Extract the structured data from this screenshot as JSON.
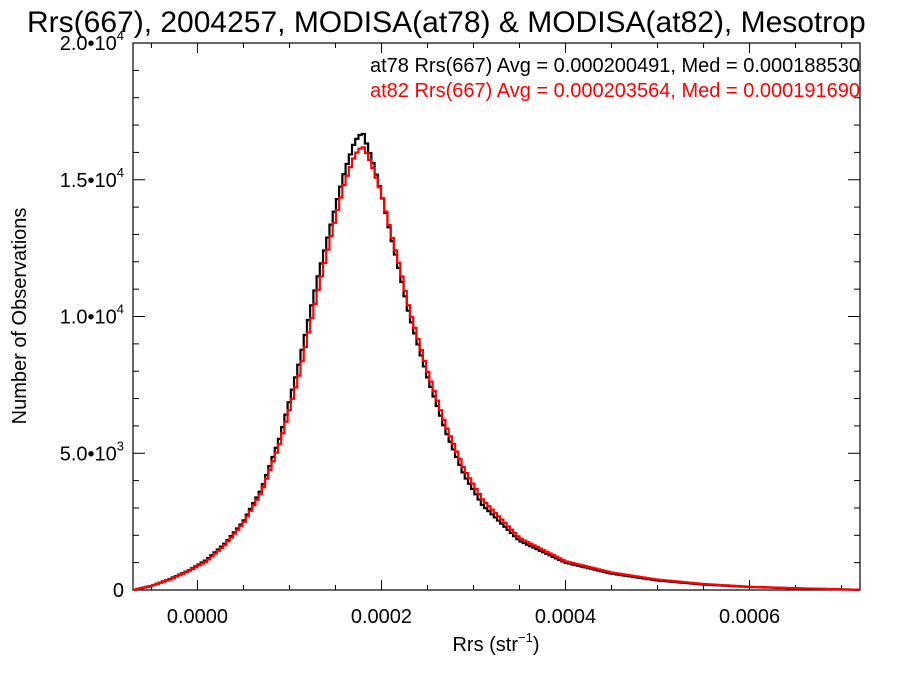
{
  "chart_data": {
    "type": "line",
    "title": "Rrs(667), 2004257, MODISA(at78) & MODISA(at82), Mesotrop",
    "xlabel": "Rrs (str",
    "xlabel_sup": "−1",
    "xlabel_end": ")",
    "ylabel": "Number of Observations",
    "xlim": [
      -7e-05,
      0.00072
    ],
    "ylim": [
      0,
      20000
    ],
    "x_ticks": [
      0.0,
      0.0002,
      0.0004,
      0.0006
    ],
    "x_tick_labels": [
      "0.0000",
      "0.0002",
      "0.0004",
      "0.0006"
    ],
    "y_ticks": [
      0,
      5000,
      10000,
      15000,
      20000
    ],
    "y_tick_labels": [
      {
        "base": "0",
        "exp": ""
      },
      {
        "base": "5.0•10",
        "exp": "3"
      },
      {
        "base": "1.0•10",
        "exp": "4"
      },
      {
        "base": "1.5•10",
        "exp": "4"
      },
      {
        "base": "2.0•10",
        "exp": "4"
      }
    ],
    "grid": false,
    "series": [
      {
        "name": "at78",
        "color": "#000000",
        "annotation": "at78 Rrs(667) Avg = 0.000200491, Med = 0.000188530",
        "x": [
          -7e-05,
          -5e-05,
          -3e-05,
          -1e-05,
          1e-05,
          3e-05,
          5e-05,
          7e-05,
          9e-05,
          0.00011,
          0.00013,
          0.00015,
          0.00016,
          0.00017,
          0.000175,
          0.00018,
          0.000185,
          0.00019,
          0.0002,
          0.00021,
          0.00022,
          0.00023,
          0.00025,
          0.00027,
          0.00029,
          0.00031,
          0.00035,
          0.0004,
          0.00045,
          0.0005,
          0.00055,
          0.0006,
          0.00065,
          0.0007,
          0.00072
        ],
        "y": [
          0,
          150,
          400,
          700,
          1100,
          1700,
          2500,
          3700,
          5600,
          8200,
          11300,
          14000,
          15300,
          16300,
          16600,
          16700,
          16200,
          15700,
          14500,
          13000,
          11600,
          10100,
          7800,
          5800,
          4200,
          3100,
          1800,
          1000,
          600,
          350,
          200,
          110,
          60,
          20,
          10
        ]
      },
      {
        "name": "at82",
        "color": "#ff0000",
        "annotation": "at82 Rrs(667) Avg = 0.000203564, Med = 0.000191690",
        "x": [
          -7e-05,
          -5e-05,
          -3e-05,
          -1e-05,
          1e-05,
          3e-05,
          5e-05,
          7e-05,
          9e-05,
          0.00011,
          0.00013,
          0.00015,
          0.00016,
          0.00017,
          0.000175,
          0.00018,
          0.000185,
          0.00019,
          0.0002,
          0.00021,
          0.00022,
          0.00023,
          0.00025,
          0.00027,
          0.00029,
          0.00031,
          0.00035,
          0.0004,
          0.00045,
          0.0005,
          0.00055,
          0.0006,
          0.00065,
          0.0007,
          0.00072
        ],
        "y": [
          0,
          150,
          380,
          680,
          1050,
          1650,
          2450,
          3600,
          5400,
          7800,
          10800,
          13600,
          14900,
          15800,
          16100,
          16200,
          15900,
          15500,
          14500,
          13100,
          11800,
          10300,
          8000,
          6000,
          4400,
          3300,
          1900,
          1050,
          640,
          380,
          220,
          120,
          65,
          25,
          10
        ]
      }
    ]
  }
}
